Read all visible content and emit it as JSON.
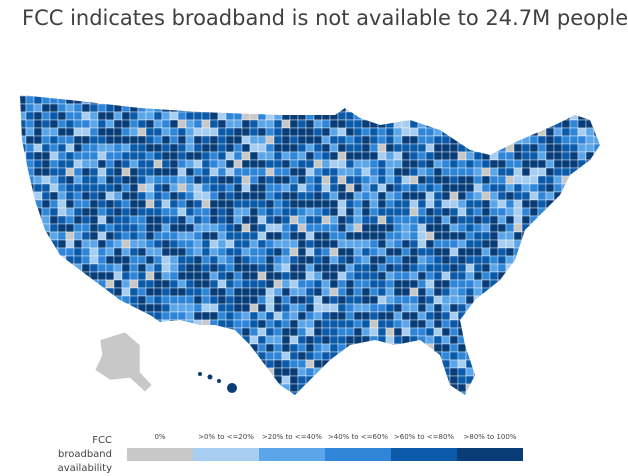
{
  "title": "FCC indicates broadband is not available to 24.7M people",
  "legend": {
    "title": "FCC broadband availability",
    "items": [
      {
        "label": "0%",
        "color": "#c8c8c8"
      },
      {
        "label": ">0% to <=20%",
        "color": "#a7cdf1"
      },
      {
        "label": ">20% to <=40%",
        "color": "#5ba6e8"
      },
      {
        "label": ">40% to <=60%",
        "color": "#2f86d8"
      },
      {
        "label": ">60% to <=80%",
        "color": "#0b5aa9"
      },
      {
        "label": ">80% to 100%",
        "color": "#083d78"
      }
    ]
  }
}
